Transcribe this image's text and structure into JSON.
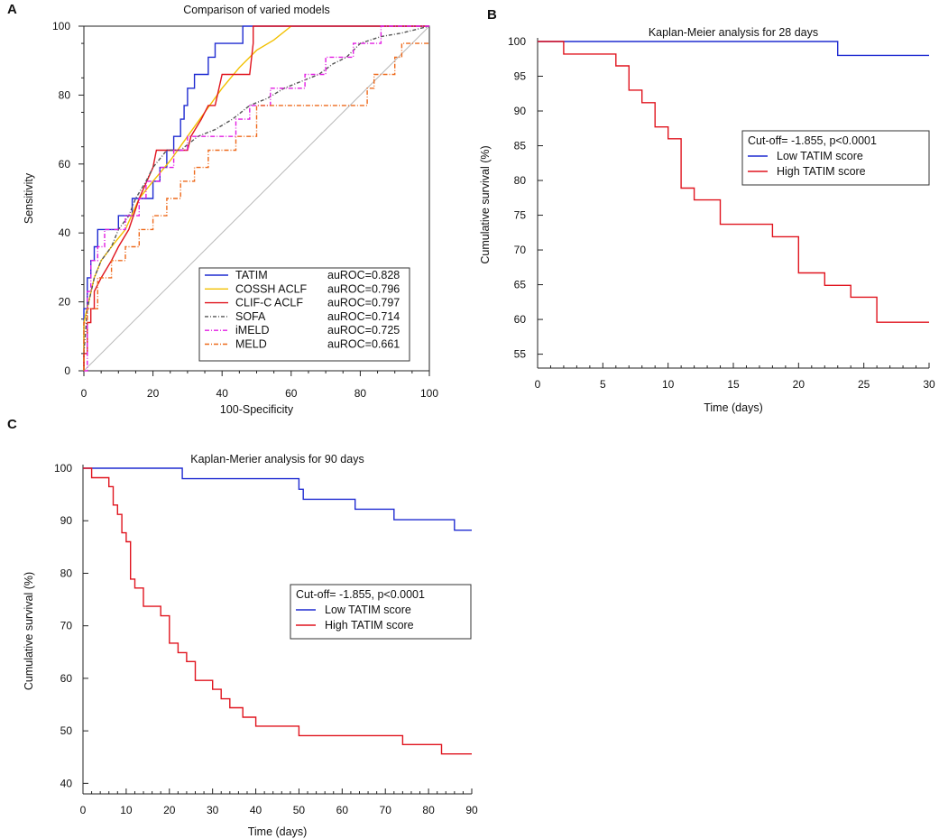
{
  "panels": {
    "a": "A",
    "b": "B",
    "c": "C"
  },
  "chart_data": [
    {
      "type": "line",
      "panel": "A",
      "title": "Comparison of varied models",
      "xlabel": "100-Specificity",
      "ylabel": "Sensitivity",
      "xlim": [
        0,
        100
      ],
      "ylim": [
        0,
        100
      ],
      "xticks": [
        0,
        20,
        40,
        60,
        80,
        100
      ],
      "yticks": [
        0,
        20,
        40,
        60,
        80,
        100
      ],
      "legend_position": "bottom-right",
      "diagonal_reference": true,
      "series": [
        {
          "name": "TATIM",
          "auc": "auROC=0.828",
          "color": "#1f2bd1",
          "dash": "",
          "x": [
            0,
            0,
            1,
            1,
            2,
            2,
            3,
            3,
            4,
            4,
            6,
            6,
            10,
            10,
            14,
            14,
            20,
            20,
            22,
            22,
            24,
            24,
            26,
            26,
            28,
            28,
            29,
            29,
            30,
            30,
            32,
            32,
            34,
            34,
            36,
            36,
            38,
            38,
            42,
            42,
            46,
            46,
            48,
            48,
            100
          ],
          "y": [
            0,
            18,
            18,
            27,
            27,
            32,
            32,
            36,
            36,
            41,
            41,
            41,
            41,
            45,
            45,
            50,
            50,
            55,
            55,
            59,
            59,
            64,
            64,
            68,
            68,
            73,
            73,
            77,
            77,
            82,
            82,
            86,
            86,
            86,
            86,
            91,
            91,
            95,
            95,
            95,
            95,
            100,
            100,
            100,
            100
          ]
        },
        {
          "name": "COSSH ACLF",
          "auc": "auROC=0.796",
          "color": "#f2c000",
          "dash": "",
          "x": [
            0,
            0,
            3,
            5,
            8,
            12,
            16,
            20,
            25,
            30,
            35,
            40,
            45,
            50,
            55,
            60
          ],
          "y": [
            0,
            14,
            27,
            32,
            36,
            41,
            50,
            55,
            61,
            68,
            75,
            82,
            88,
            93,
            96,
            100
          ]
        },
        {
          "name": "CLIF-C ACLF",
          "auc": "auROC=0.797",
          "color": "#e0141e",
          "dash": "",
          "x": [
            0,
            0,
            1,
            1,
            2,
            2,
            3,
            3,
            5,
            8,
            10,
            13,
            16,
            20,
            21,
            21,
            26,
            26,
            30,
            31,
            34,
            36,
            38,
            40,
            40,
            48,
            49,
            49,
            100
          ],
          "y": [
            0,
            5,
            5,
            14,
            14,
            18,
            18,
            23,
            27,
            32,
            36,
            41,
            50,
            59,
            64,
            64,
            64,
            64,
            64,
            68,
            73,
            77,
            77,
            86,
            86,
            86,
            95,
            100,
            100
          ]
        },
        {
          "name": "SOFA",
          "auc": "auROC=0.714",
          "color": "#555555",
          "dash": "4 2 1 2",
          "x": [
            0,
            1,
            3,
            5,
            8,
            10,
            13,
            15,
            18,
            20,
            24,
            28,
            33,
            38,
            43,
            48,
            53,
            58,
            63,
            68,
            72,
            76,
            80,
            86,
            92,
            100
          ],
          "y": [
            5,
            18,
            27,
            32,
            36,
            41,
            45,
            50,
            55,
            59,
            64,
            64,
            68,
            70,
            73,
            77,
            79,
            82,
            84,
            86,
            89,
            91,
            95,
            97,
            98,
            100
          ]
        },
        {
          "name": "iMELD",
          "auc": "auROC=0.725",
          "color": "#e21ee2",
          "dash": "5 2 1 2",
          "x": [
            0,
            1,
            1,
            2,
            2,
            4,
            4,
            6,
            6,
            8,
            8,
            12,
            12,
            16,
            16,
            18,
            18,
            22,
            22,
            26,
            26,
            30,
            30,
            36,
            36,
            44,
            44,
            48,
            48,
            54,
            54,
            64,
            64,
            70,
            70,
            74,
            74,
            78,
            78,
            84,
            84,
            86,
            86,
            96,
            96,
            100
          ],
          "y": [
            0,
            0,
            23,
            23,
            32,
            32,
            36,
            36,
            41,
            41,
            41,
            41,
            45,
            45,
            50,
            50,
            55,
            55,
            59,
            59,
            64,
            64,
            68,
            68,
            68,
            68,
            73,
            73,
            77,
            77,
            82,
            82,
            86,
            86,
            91,
            91,
            91,
            91,
            95,
            95,
            95,
            95,
            100,
            100,
            100,
            100
          ]
        },
        {
          "name": "MELD",
          "auc": "auROC=0.661",
          "color": "#ee6a1c",
          "dash": "5 2 1 2",
          "x": [
            0,
            0,
            1,
            1,
            4,
            4,
            8,
            8,
            12,
            12,
            16,
            16,
            20,
            20,
            24,
            24,
            28,
            28,
            32,
            32,
            36,
            36,
            40,
            40,
            44,
            44,
            50,
            50,
            80,
            80,
            82,
            82,
            84,
            84,
            86,
            86,
            90,
            90,
            92,
            92,
            94,
            94,
            100
          ],
          "y": [
            0,
            14,
            14,
            18,
            18,
            27,
            27,
            32,
            32,
            36,
            36,
            41,
            41,
            45,
            45,
            50,
            50,
            55,
            55,
            59,
            59,
            64,
            64,
            64,
            64,
            68,
            68,
            77,
            77,
            77,
            77,
            82,
            82,
            86,
            86,
            86,
            86,
            91,
            91,
            95,
            95,
            95,
            95
          ]
        }
      ]
    },
    {
      "type": "line",
      "panel": "B",
      "title": "Kaplan-Meier analysis for 28 days",
      "xlabel": "Time (days)",
      "ylabel": "Cumulative survival (%)",
      "xlim": [
        0,
        30
      ],
      "ylim": [
        53,
        100
      ],
      "xticks": [
        0,
        5,
        10,
        15,
        20,
        25,
        30
      ],
      "yticks": [
        55,
        60,
        65,
        70,
        75,
        80,
        85,
        90,
        95,
        100
      ],
      "legend_title": "Cut-off= -1.855, p<0.0001",
      "legend_position": "center-right",
      "series": [
        {
          "name": "Low TATIM score",
          "color": "#1f2bd1",
          "x": [
            0,
            23,
            23,
            30
          ],
          "y": [
            100,
            100,
            98,
            98
          ]
        },
        {
          "name": "High TATIM score",
          "color": "#e0141e",
          "x": [
            0,
            2,
            2,
            6,
            6,
            7,
            7,
            8,
            8,
            9,
            9,
            10,
            10,
            11,
            11,
            12,
            12,
            14,
            14,
            18,
            18,
            20,
            20,
            22,
            22,
            24,
            24,
            26,
            26,
            30
          ],
          "y": [
            100,
            100,
            98.2,
            98.2,
            96.5,
            96.5,
            93,
            93,
            91.2,
            91.2,
            87.7,
            87.7,
            86,
            86,
            78.9,
            78.9,
            77.2,
            77.2,
            73.7,
            73.7,
            71.9,
            71.9,
            66.7,
            66.7,
            64.9,
            64.9,
            63.2,
            63.2,
            59.6,
            59.6
          ]
        }
      ]
    },
    {
      "type": "line",
      "panel": "C",
      "title": "Kaplan-Merier analysis for 90 days",
      "xlabel": "Time (days)",
      "ylabel": "Cumulative survival (%)",
      "xlim": [
        0,
        90
      ],
      "ylim": [
        38,
        100
      ],
      "xticks": [
        0,
        10,
        20,
        30,
        40,
        50,
        60,
        70,
        80,
        90
      ],
      "yticks": [
        40,
        50,
        60,
        70,
        80,
        90,
        100
      ],
      "legend_title": "Cut-off= -1.855, p<0.0001",
      "legend_position": "center",
      "series": [
        {
          "name": "Low TATIM score",
          "color": "#1f2bd1",
          "x": [
            0,
            23,
            23,
            50,
            50,
            51,
            51,
            63,
            63,
            72,
            72,
            86,
            86,
            90
          ],
          "y": [
            100,
            100,
            98,
            98,
            96,
            96,
            94.1,
            94.1,
            92.2,
            92.2,
            90.2,
            90.2,
            88.2,
            88.2
          ]
        },
        {
          "name": "High TATIM score",
          "color": "#e0141e",
          "x": [
            0,
            2,
            2,
            6,
            6,
            7,
            7,
            8,
            8,
            9,
            9,
            10,
            10,
            11,
            11,
            12,
            12,
            14,
            14,
            18,
            18,
            20,
            20,
            22,
            22,
            24,
            24,
            26,
            26,
            30,
            30,
            32,
            32,
            34,
            34,
            37,
            37,
            40,
            40,
            50,
            50,
            74,
            74,
            83,
            83,
            90
          ],
          "y": [
            100,
            100,
            98.2,
            98.2,
            96.5,
            96.5,
            93,
            93,
            91.2,
            91.2,
            87.7,
            87.7,
            86,
            86,
            78.9,
            78.9,
            77.2,
            77.2,
            73.7,
            73.7,
            71.9,
            71.9,
            66.7,
            66.7,
            64.9,
            64.9,
            63.2,
            63.2,
            59.6,
            59.6,
            57.9,
            57.9,
            56.1,
            56.1,
            54.4,
            54.4,
            52.6,
            52.6,
            50.9,
            50.9,
            49.1,
            49.1,
            47.4,
            47.4,
            45.6,
            45.6
          ]
        }
      ]
    }
  ]
}
